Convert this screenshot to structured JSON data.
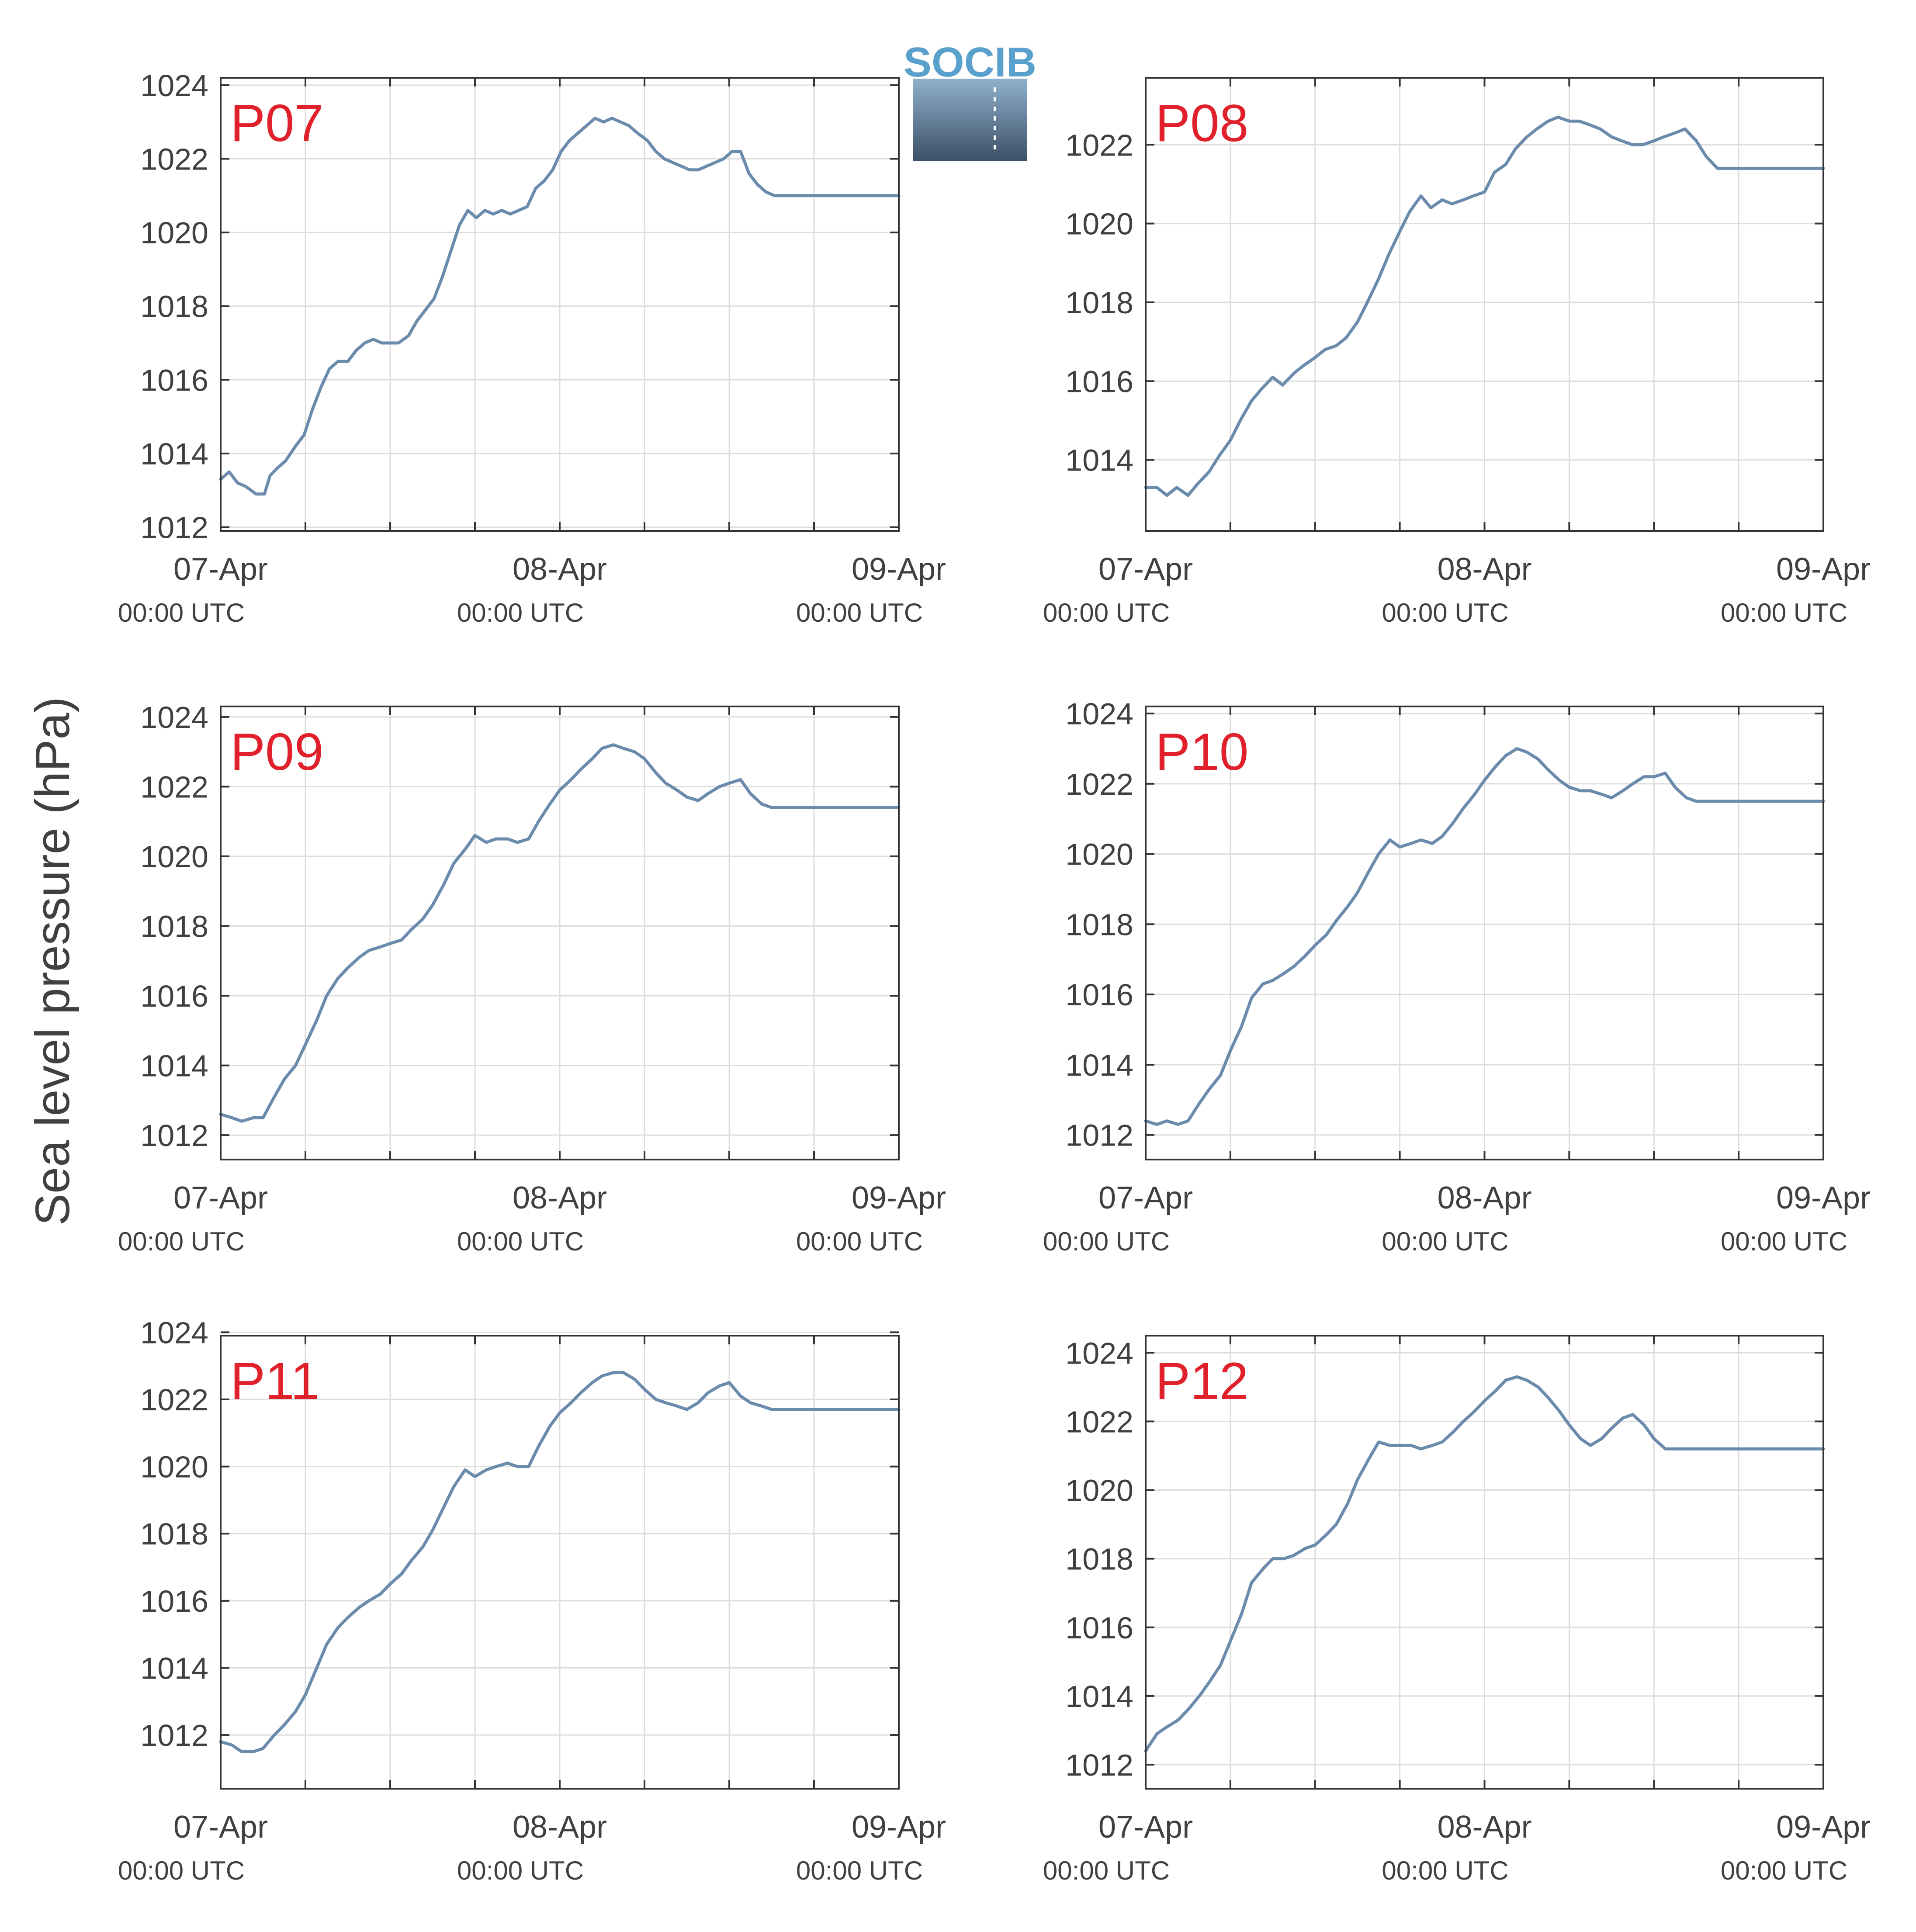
{
  "ylabel": "Sea level pressure (hPa)",
  "logo": {
    "text": "SOCIB"
  },
  "colors": {
    "line": "#6b8bad",
    "panel_label": "#e0202a",
    "axis": "#333333",
    "grid": "#dddddd",
    "text": "#404040"
  },
  "xticks": [
    {
      "top": "07-Apr",
      "bottom": "00:00 UTC",
      "h": 0
    },
    {
      "top": "08-Apr",
      "bottom": "00:00 UTC",
      "h": 24
    },
    {
      "top": "09-Apr",
      "bottom": "00:00 UTC",
      "h": 48
    }
  ],
  "chart_data": [
    {
      "type": "line",
      "title": "P07",
      "xlim": [
        0,
        48
      ],
      "ylim": [
        1011.9,
        1024.2
      ],
      "yticks": [
        1012,
        1014,
        1016,
        1018,
        1020,
        1022,
        1024
      ],
      "x": [
        0,
        0.6,
        1.2,
        1.8,
        2.5,
        3.1,
        3.5,
        4,
        4.6,
        5.3,
        5.9,
        6.5,
        7.1,
        7.7,
        8.3,
        9,
        9.6,
        10.2,
        10.8,
        11.4,
        12,
        12.6,
        13.3,
        13.9,
        14.5,
        15.1,
        15.7,
        16.3,
        16.9,
        17.5,
        18.1,
        18.7,
        19.3,
        19.9,
        20.5,
        21.1,
        21.7,
        22.3,
        22.9,
        23.5,
        24.1,
        24.7,
        25.3,
        25.9,
        26.5,
        27.1,
        27.7,
        28.3,
        28.9,
        29.5,
        30.2,
        30.8,
        31.4,
        32,
        32.6,
        33.2,
        33.8,
        34.4,
        35,
        35.6,
        36.2,
        36.8,
        37.4,
        38,
        38.6,
        39.2,
        39.8,
        40.4,
        41,
        41.6,
        42.2,
        42.8,
        43.4,
        44,
        44.6,
        45.2,
        45.8,
        46.4,
        47,
        47.6,
        48
      ],
      "y": [
        1013.3,
        1013.5,
        1013.2,
        1013.1,
        1012.9,
        1012.9,
        1013.4,
        1013.6,
        1013.8,
        1014.2,
        1014.5,
        1015.2,
        1015.8,
        1016.3,
        1016.5,
        1016.5,
        1016.8,
        1017.0,
        1017.1,
        1017.0,
        1017.0,
        1017.0,
        1017.2,
        1017.6,
        1017.9,
        1018.2,
        1018.8,
        1019.5,
        1020.2,
        1020.6,
        1020.4,
        1020.6,
        1020.5,
        1020.6,
        1020.5,
        1020.6,
        1020.7,
        1021.2,
        1021.4,
        1021.7,
        1022.2,
        1022.5,
        1022.7,
        1022.9,
        1023.1,
        1023.0,
        1023.1,
        1023.0,
        1022.9,
        1022.7,
        1022.5,
        1022.2,
        1022.0,
        1021.9,
        1021.8,
        1021.7,
        1021.7,
        1021.8,
        1021.9,
        1022.0,
        1022.2,
        1022.2,
        1021.6,
        1021.3,
        1021.1,
        1021.0,
        1021.0,
        1021.0,
        1021.0,
        1021.0,
        1021.0,
        1021.0,
        1021.0,
        1021.0,
        1021.0,
        1021.0,
        1021.0,
        1021.0,
        1021.0,
        1021.0,
        1021.0
      ]
    },
    {
      "type": "line",
      "title": "P08",
      "xlim": [
        0,
        48
      ],
      "ylim": [
        1012.2,
        1023.7
      ],
      "yticks": [
        1014,
        1016,
        1018,
        1020,
        1022
      ],
      "x": [
        0,
        0.8,
        1.5,
        2.2,
        3,
        3.7,
        4.5,
        5.2,
        6,
        6.7,
        7.5,
        8.2,
        9,
        9.7,
        10.5,
        11.2,
        12,
        12.7,
        13.5,
        14.2,
        15,
        15.7,
        16.5,
        17.2,
        18,
        18.7,
        19.5,
        20.2,
        21,
        21.7,
        22.5,
        23.2,
        24,
        24.7,
        25.5,
        26.2,
        27,
        27.7,
        28.5,
        29.2,
        30,
        30.7,
        31.5,
        32.2,
        33,
        33.7,
        34.5,
        35.2,
        36,
        36.7,
        37.5,
        38.2,
        39,
        39.7,
        40.5,
        41.2,
        42,
        42.7,
        43.5,
        44.2,
        45,
        45.7,
        46.5,
        47.2,
        48
      ],
      "y": [
        1013.3,
        1013.3,
        1013.1,
        1013.3,
        1013.1,
        1013.4,
        1013.7,
        1014.1,
        1014.5,
        1015.0,
        1015.5,
        1015.8,
        1016.1,
        1015.9,
        1016.2,
        1016.4,
        1016.6,
        1016.8,
        1016.9,
        1017.1,
        1017.5,
        1018.0,
        1018.6,
        1019.2,
        1019.8,
        1020.3,
        1020.7,
        1020.4,
        1020.6,
        1020.5,
        1020.6,
        1020.7,
        1020.8,
        1021.3,
        1021.5,
        1021.9,
        1022.2,
        1022.4,
        1022.6,
        1022.7,
        1022.6,
        1022.6,
        1022.5,
        1022.4,
        1022.2,
        1022.1,
        1022.0,
        1022.0,
        1022.1,
        1022.2,
        1022.3,
        1022.4,
        1022.1,
        1021.7,
        1021.4,
        1021.4,
        1021.4,
        1021.4,
        1021.4,
        1021.4,
        1021.4,
        1021.4,
        1021.4,
        1021.4,
        1021.4
      ]
    },
    {
      "type": "line",
      "title": "P09",
      "xlim": [
        0,
        48
      ],
      "ylim": [
        1011.3,
        1024.3
      ],
      "yticks": [
        1012,
        1014,
        1016,
        1018,
        1020,
        1022,
        1024
      ],
      "x": [
        0,
        0.8,
        1.5,
        2.3,
        3,
        3.8,
        4.5,
        5.3,
        6,
        6.8,
        7.5,
        8.3,
        9,
        9.8,
        10.5,
        11.3,
        12,
        12.8,
        13.5,
        14.3,
        15,
        15.8,
        16.5,
        17.3,
        18,
        18.8,
        19.5,
        20.3,
        21,
        21.8,
        22.5,
        23.3,
        24,
        24.8,
        25.5,
        26.3,
        27,
        27.8,
        28.5,
        29.3,
        30,
        30.8,
        31.5,
        32.3,
        33,
        33.8,
        34.5,
        35.3,
        36,
        36.8,
        37.5,
        38.3,
        39,
        39.8,
        40.5,
        41.3,
        42,
        42.8,
        43.5,
        44.3,
        45,
        45.8,
        46.5,
        47.3,
        48
      ],
      "y": [
        1012.6,
        1012.5,
        1012.4,
        1012.5,
        1012.5,
        1013.1,
        1013.6,
        1014.0,
        1014.6,
        1015.3,
        1016.0,
        1016.5,
        1016.8,
        1017.1,
        1017.3,
        1017.4,
        1017.5,
        1017.6,
        1017.9,
        1018.2,
        1018.6,
        1019.2,
        1019.8,
        1020.2,
        1020.6,
        1020.4,
        1020.5,
        1020.5,
        1020.4,
        1020.5,
        1021.0,
        1021.5,
        1021.9,
        1022.2,
        1022.5,
        1022.8,
        1023.1,
        1023.2,
        1023.1,
        1023.0,
        1022.8,
        1022.4,
        1022.1,
        1021.9,
        1021.7,
        1021.6,
        1021.8,
        1022.0,
        1022.1,
        1022.2,
        1021.8,
        1021.5,
        1021.4,
        1021.4,
        1021.4,
        1021.4,
        1021.4,
        1021.4,
        1021.4,
        1021.4,
        1021.4,
        1021.4,
        1021.4,
        1021.4,
        1021.4
      ]
    },
    {
      "type": "line",
      "title": "P10",
      "xlim": [
        0,
        48
      ],
      "ylim": [
        1011.3,
        1024.2
      ],
      "yticks": [
        1012,
        1014,
        1016,
        1018,
        1020,
        1022,
        1024
      ],
      "x": [
        0,
        0.8,
        1.5,
        2.3,
        3,
        3.8,
        4.5,
        5.3,
        6,
        6.8,
        7.5,
        8.3,
        9,
        9.8,
        10.5,
        11.3,
        12,
        12.8,
        13.5,
        14.3,
        15,
        15.8,
        16.5,
        17.3,
        18,
        18.8,
        19.5,
        20.3,
        21,
        21.8,
        22.5,
        23.3,
        24,
        24.8,
        25.5,
        26.3,
        27,
        27.8,
        28.5,
        29.3,
        30,
        30.8,
        31.5,
        32.3,
        33,
        33.8,
        34.5,
        35.3,
        36,
        36.8,
        37.5,
        38.3,
        39,
        39.8,
        40.5,
        41.3,
        42,
        42.8,
        43.5,
        44.3,
        45,
        45.8,
        46.5,
        47.3,
        48
      ],
      "y": [
        1012.4,
        1012.3,
        1012.4,
        1012.3,
        1012.4,
        1012.9,
        1013.3,
        1013.7,
        1014.4,
        1015.1,
        1015.9,
        1016.3,
        1016.4,
        1016.6,
        1016.8,
        1017.1,
        1017.4,
        1017.7,
        1018.1,
        1018.5,
        1018.9,
        1019.5,
        1020.0,
        1020.4,
        1020.2,
        1020.3,
        1020.4,
        1020.3,
        1020.5,
        1020.9,
        1021.3,
        1021.7,
        1022.1,
        1022.5,
        1022.8,
        1023.0,
        1022.9,
        1022.7,
        1022.4,
        1022.1,
        1021.9,
        1021.8,
        1021.8,
        1021.7,
        1021.6,
        1021.8,
        1022.0,
        1022.2,
        1022.2,
        1022.3,
        1021.9,
        1021.6,
        1021.5,
        1021.5,
        1021.5,
        1021.5,
        1021.5,
        1021.5,
        1021.5,
        1021.5,
        1021.5,
        1021.5,
        1021.5,
        1021.5,
        1021.5
      ]
    },
    {
      "type": "line",
      "title": "P11",
      "xlim": [
        0,
        48
      ],
      "ylim": [
        1010.4,
        1023.9
      ],
      "yticks": [
        1012,
        1014,
        1016,
        1018,
        1020,
        1022,
        1024
      ],
      "x": [
        0,
        0.8,
        1.5,
        2.3,
        3,
        3.8,
        4.5,
        5.3,
        6,
        6.8,
        7.5,
        8.3,
        9,
        9.8,
        10.5,
        11.3,
        12,
        12.8,
        13.5,
        14.3,
        15,
        15.8,
        16.5,
        17.3,
        18,
        18.8,
        19.5,
        20.3,
        21,
        21.8,
        22.5,
        23.3,
        24,
        24.8,
        25.5,
        26.3,
        27,
        27.8,
        28.5,
        29.3,
        30,
        30.8,
        31.5,
        32.3,
        33,
        33.8,
        34.5,
        35.3,
        36,
        36.8,
        37.5,
        38.3,
        39,
        39.8,
        40.5,
        41.3,
        42,
        42.8,
        43.5,
        44.3,
        45,
        45.8,
        46.5,
        47.3,
        48
      ],
      "y": [
        1011.8,
        1011.7,
        1011.5,
        1011.5,
        1011.6,
        1012.0,
        1012.3,
        1012.7,
        1013.2,
        1014.0,
        1014.7,
        1015.2,
        1015.5,
        1015.8,
        1016.0,
        1016.2,
        1016.5,
        1016.8,
        1017.2,
        1017.6,
        1018.1,
        1018.8,
        1019.4,
        1019.9,
        1019.7,
        1019.9,
        1020.0,
        1020.1,
        1020.0,
        1020.0,
        1020.6,
        1021.2,
        1021.6,
        1021.9,
        1022.2,
        1022.5,
        1022.7,
        1022.8,
        1022.8,
        1022.6,
        1022.3,
        1022.0,
        1021.9,
        1021.8,
        1021.7,
        1021.9,
        1022.2,
        1022.4,
        1022.5,
        1022.1,
        1021.9,
        1021.8,
        1021.7,
        1021.7,
        1021.7,
        1021.7,
        1021.7,
        1021.7,
        1021.7,
        1021.7,
        1021.7,
        1021.7,
        1021.7,
        1021.7,
        1021.7
      ]
    },
    {
      "type": "line",
      "title": "P12",
      "xlim": [
        0,
        48
      ],
      "ylim": [
        1011.3,
        1024.5
      ],
      "yticks": [
        1012,
        1014,
        1016,
        1018,
        1020,
        1022,
        1024
      ],
      "x": [
        0,
        0.8,
        1.5,
        2.3,
        3,
        3.8,
        4.5,
        5.3,
        6,
        6.8,
        7.5,
        8.3,
        9,
        9.8,
        10.5,
        11.3,
        12,
        12.8,
        13.5,
        14.3,
        15,
        15.8,
        16.5,
        17.3,
        18,
        18.8,
        19.5,
        20.3,
        21,
        21.8,
        22.5,
        23.3,
        24,
        24.8,
        25.5,
        26.3,
        27,
        27.8,
        28.5,
        29.3,
        30,
        30.8,
        31.5,
        32.3,
        33,
        33.8,
        34.5,
        35.3,
        36,
        36.8,
        37.5,
        38.3,
        39,
        39.8,
        40.5,
        41.3,
        42,
        42.8,
        43.5,
        44.3,
        45,
        45.8,
        46.5,
        47.3,
        48
      ],
      "y": [
        1012.4,
        1012.9,
        1013.1,
        1013.3,
        1013.6,
        1014.0,
        1014.4,
        1014.9,
        1015.6,
        1016.4,
        1017.3,
        1017.7,
        1018.0,
        1018.0,
        1018.1,
        1018.3,
        1018.4,
        1018.7,
        1019.0,
        1019.6,
        1020.3,
        1020.9,
        1021.4,
        1021.3,
        1021.3,
        1021.3,
        1021.2,
        1021.3,
        1021.4,
        1021.7,
        1022.0,
        1022.3,
        1022.6,
        1022.9,
        1023.2,
        1023.3,
        1023.2,
        1023.0,
        1022.7,
        1022.3,
        1021.9,
        1021.5,
        1021.3,
        1021.5,
        1021.8,
        1022.1,
        1022.2,
        1021.9,
        1021.5,
        1021.2,
        1021.2,
        1021.2,
        1021.2,
        1021.2,
        1021.2,
        1021.2,
        1021.2,
        1021.2,
        1021.2,
        1021.2,
        1021.2,
        1021.2,
        1021.2,
        1021.2,
        1021.2
      ]
    }
  ]
}
